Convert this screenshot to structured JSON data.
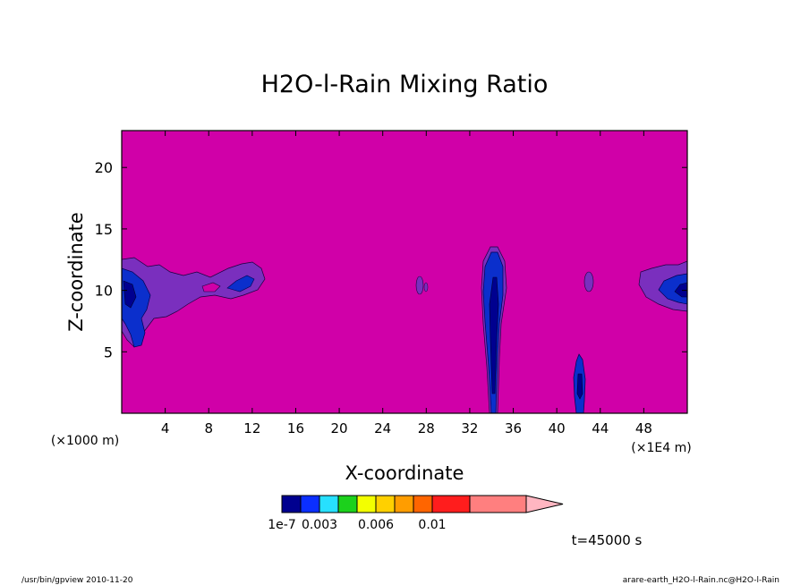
{
  "chart_data": {
    "type": "heatmap",
    "title": "H2O-l-Rain Mixing Ratio",
    "xlabel": "X-coordinate",
    "ylabel": "Z-coordinate",
    "x_unit_left": "(×1000 m)",
    "x_unit_right": "(×1E4 m)",
    "xlim": [
      0,
      52
    ],
    "ylim": [
      0,
      23
    ],
    "x_ticks": [
      4,
      8,
      12,
      16,
      20,
      24,
      28,
      32,
      36,
      40,
      44,
      48
    ],
    "y_ticks": [
      5,
      10,
      15,
      20
    ],
    "background_color": "#d000a8",
    "colorbar": {
      "colors": [
        "#00008f",
        "#0b2fff",
        "#27e0ff",
        "#1cd11c",
        "#f3ff00",
        "#ffd000",
        "#ff9d00",
        "#ff6500",
        "#ff1d1d",
        "#ff7f7f",
        "#ffb6c1"
      ],
      "labels": [
        {
          "text": "1e-7",
          "index": 0
        },
        {
          "text": "0.003",
          "index": 2
        },
        {
          "text": "0.006",
          "index": 5
        },
        {
          "text": "0.01",
          "index": 8
        }
      ]
    },
    "regions": [
      {
        "name": "left-cloud",
        "level": "purple",
        "color": "#7a2fbe"
      },
      {
        "name": "left-core",
        "level": "blue",
        "color": "#0b2fcc"
      },
      {
        "name": "column-33",
        "level": "blue",
        "color": "#0b2fcc"
      },
      {
        "name": "column-41",
        "level": "blue",
        "color": "#0b2fcc"
      },
      {
        "name": "right-cloud",
        "level": "purple",
        "color": "#7a2fbe"
      }
    ]
  },
  "footer": {
    "time_label": "t=45000 s",
    "left_note": "/usr/bin/gpview  2010-11-20",
    "right_note": "arare-earth_H2O-l-Rain.nc@H2O-l-Rain"
  }
}
